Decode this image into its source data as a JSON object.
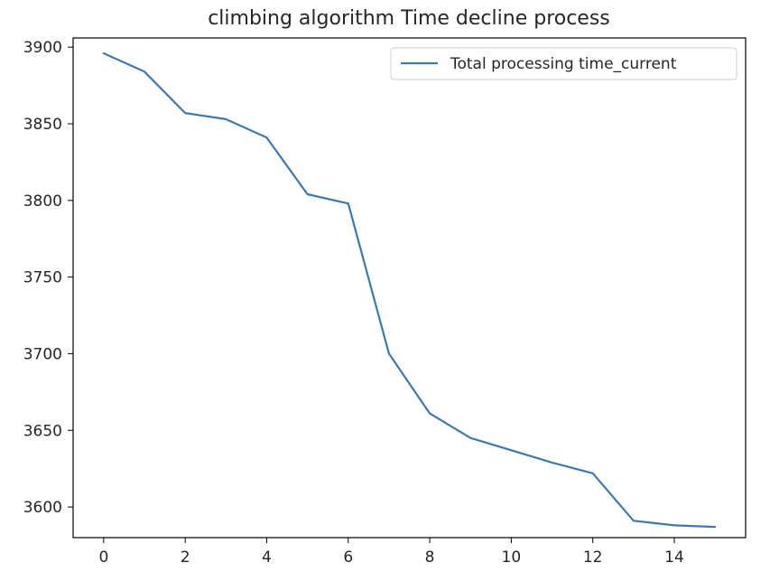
{
  "chart_data": {
    "type": "line",
    "title": "climbing algorithm Time decline process",
    "xlabel": "",
    "ylabel": "",
    "xlim": [
      -0.75,
      15.75
    ],
    "ylim": [
      3580,
      3906
    ],
    "x_ticks": [
      0,
      2,
      4,
      6,
      8,
      10,
      12,
      14
    ],
    "y_ticks": [
      3600,
      3650,
      3700,
      3750,
      3800,
      3850,
      3900
    ],
    "grid": false,
    "legend_position": "top-right",
    "series": [
      {
        "name": "Total processing time_current",
        "color": "#3a78b4",
        "x": [
          0,
          1,
          2,
          3,
          4,
          5,
          6,
          7,
          8,
          9,
          10,
          11,
          12,
          13,
          14,
          15
        ],
        "values": [
          3896,
          3884,
          3857,
          3853,
          3841,
          3804,
          3798,
          3700,
          3661,
          3645,
          3637,
          3629,
          3622,
          3591,
          3588,
          3587
        ]
      }
    ]
  }
}
